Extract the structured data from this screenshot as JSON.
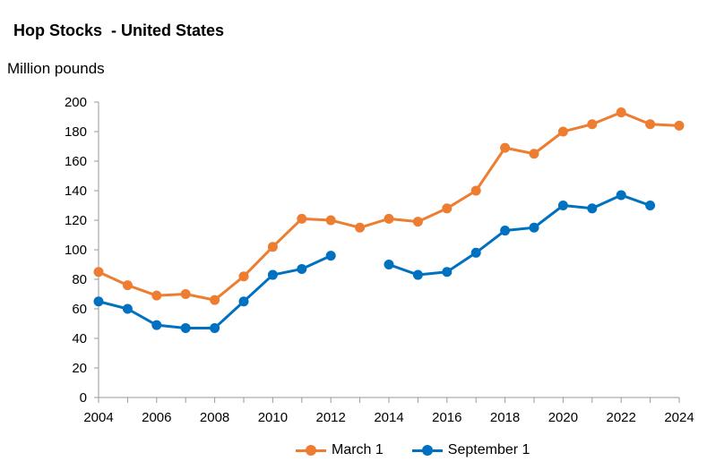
{
  "chart_data": {
    "type": "line",
    "title": "Hop Stocks  - United States",
    "ylabel": "Million pounds",
    "xlabel": "",
    "x": [
      2004,
      2005,
      2006,
      2007,
      2008,
      2009,
      2010,
      2011,
      2012,
      2013,
      2014,
      2015,
      2016,
      2017,
      2018,
      2019,
      2020,
      2021,
      2022,
      2023,
      2024
    ],
    "xticks": [
      "2004",
      "2006",
      "2008",
      "2010",
      "2012",
      "2014",
      "2016",
      "2018",
      "2020",
      "2022",
      "2024"
    ],
    "yticks": [
      "0",
      "20",
      "40",
      "60",
      "80",
      "100",
      "120",
      "140",
      "160",
      "180",
      "200"
    ],
    "xlim": [
      2004,
      2024
    ],
    "ylim": [
      0,
      200
    ],
    "grid": false,
    "legend_position": "bottom",
    "series": [
      {
        "name": "March 1",
        "color": "#ED7D31",
        "values": [
          85,
          76,
          69,
          70,
          66,
          82,
          102,
          121,
          120,
          115,
          121,
          119,
          128,
          140,
          169,
          165,
          180,
          185,
          193,
          185,
          184
        ]
      },
      {
        "name": "September 1",
        "color": "#0070C0",
        "values": [
          65,
          60,
          49,
          47,
          47,
          65,
          83,
          87,
          96,
          null,
          90,
          83,
          85,
          98,
          113,
          115,
          130,
          128,
          137,
          130,
          null
        ]
      }
    ]
  }
}
